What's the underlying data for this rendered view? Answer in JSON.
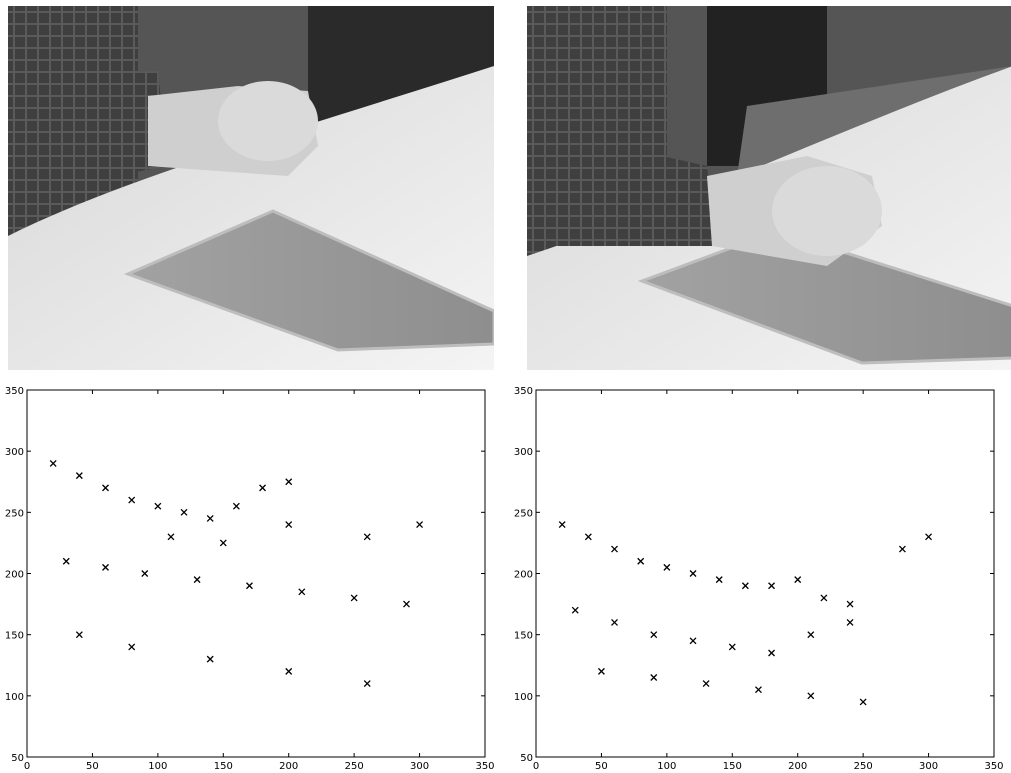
{
  "chart_data": [
    {
      "type": "scatter",
      "title": "",
      "xlabel": "",
      "ylabel": "",
      "xlim": [
        0,
        350
      ],
      "ylim": [
        50,
        350
      ],
      "x_ticks": [
        "0",
        "50",
        "100",
        "150",
        "200",
        "250",
        "300",
        "350"
      ],
      "y_ticks": [
        "50",
        "100",
        "150",
        "200",
        "250",
        "300",
        "350"
      ],
      "grid": false,
      "series": [
        {
          "x": [
            20,
            40,
            60,
            80,
            100,
            120,
            140,
            160,
            180,
            200,
            110,
            150,
            200,
            260,
            300,
            30,
            60,
            90,
            130,
            170,
            210,
            250,
            290,
            40,
            80,
            140,
            200,
            260
          ],
          "y": [
            290,
            280,
            270,
            260,
            255,
            250,
            245,
            255,
            270,
            275,
            230,
            225,
            240,
            230,
            240,
            210,
            205,
            200,
            195,
            190,
            185,
            180,
            175,
            150,
            140,
            130,
            120,
            110
          ]
        }
      ]
    },
    {
      "type": "scatter",
      "title": "",
      "xlabel": "",
      "ylabel": "",
      "xlim": [
        0,
        350
      ],
      "ylim": [
        50,
        350
      ],
      "x_ticks": [
        "0",
        "50",
        "100",
        "150",
        "200",
        "250",
        "300",
        "350"
      ],
      "y_ticks": [
        "50",
        "100",
        "150",
        "200",
        "250",
        "300",
        "350"
      ],
      "grid": false,
      "series": [
        {
          "x": [
            20,
            40,
            60,
            80,
            100,
            120,
            140,
            160,
            180,
            200,
            220,
            240,
            30,
            60,
            90,
            120,
            150,
            180,
            210,
            240,
            280,
            300,
            50,
            90,
            130,
            170,
            210,
            250
          ],
          "y": [
            240,
            230,
            220,
            210,
            205,
            200,
            195,
            190,
            190,
            195,
            180,
            175,
            170,
            160,
            150,
            145,
            140,
            135,
            150,
            160,
            220,
            230,
            120,
            115,
            110,
            105,
            100,
            95
          ]
        }
      ]
    }
  ]
}
